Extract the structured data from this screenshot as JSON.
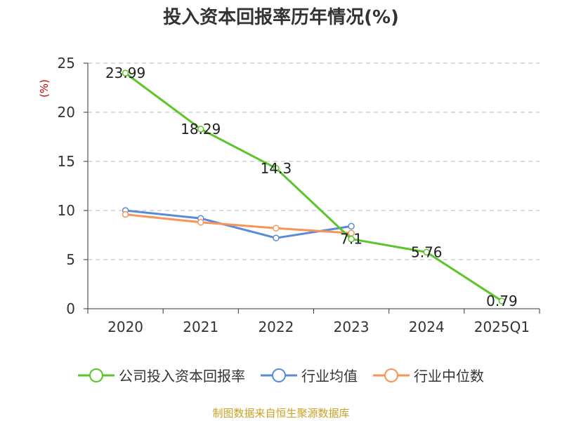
{
  "title": "投入资本回报率历年情况(%)",
  "ylabel": "(%)",
  "source": "制图数据来自恒生聚源数据库",
  "colors": {
    "company": "#5cc52a",
    "industry_avg": "#5b8ad8",
    "industry_median": "#f7945a",
    "source": "#c9a227",
    "ylabel": "#cc0000",
    "grid": "#bbbbbb",
    "axis": "#333333"
  },
  "chart_data": {
    "type": "line",
    "categories": [
      "2020",
      "2021",
      "2022",
      "2023",
      "2024",
      "2025Q1"
    ],
    "yticks": [
      "0",
      "5",
      "10",
      "15",
      "20",
      "25"
    ],
    "ylim": [
      0,
      25
    ],
    "grid": true,
    "legend_position": "bottom",
    "series": [
      {
        "name": "公司投入资本回报率",
        "color_key": "company",
        "values": [
          23.99,
          18.29,
          14.3,
          7.1,
          5.76,
          0.79
        ],
        "labels": [
          "23.99",
          "18.29",
          "14.3",
          "7.1",
          "5.76",
          "0.79"
        ]
      },
      {
        "name": "行业均值",
        "color_key": "industry_avg",
        "values": [
          10.0,
          9.2,
          7.2,
          8.4,
          null,
          null
        ]
      },
      {
        "name": "行业中位数",
        "color_key": "industry_median",
        "values": [
          9.6,
          8.8,
          8.2,
          7.7,
          null,
          null
        ]
      }
    ]
  }
}
